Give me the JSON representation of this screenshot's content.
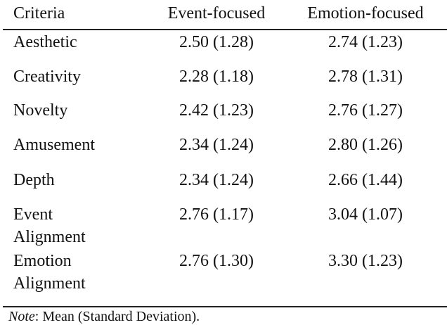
{
  "table": {
    "header": [
      "Criteria",
      "Event-focused",
      "Emotion-focused"
    ],
    "rows": [
      [
        "Aesthetic",
        "2.50 (1.28)",
        "2.74 (1.23)"
      ],
      [
        "Creativity",
        "2.28 (1.18)",
        "2.78 (1.31)"
      ],
      [
        "Novelty",
        "2.42 (1.23)",
        "2.76 (1.27)"
      ],
      [
        "Amusement",
        "2.34 (1.24)",
        "2.80 (1.26)"
      ],
      [
        "Depth",
        "2.34 (1.24)",
        "2.66 (1.44)"
      ],
      [
        "Event Alignment",
        "2.76 (1.17)",
        "3.04 (1.07)"
      ],
      [
        "Emotion Alignment",
        "2.76 (1.30)",
        "3.30 (1.23)"
      ]
    ]
  },
  "note": {
    "label": "Note",
    "text": ": Mean (Standard Deviation)."
  }
}
